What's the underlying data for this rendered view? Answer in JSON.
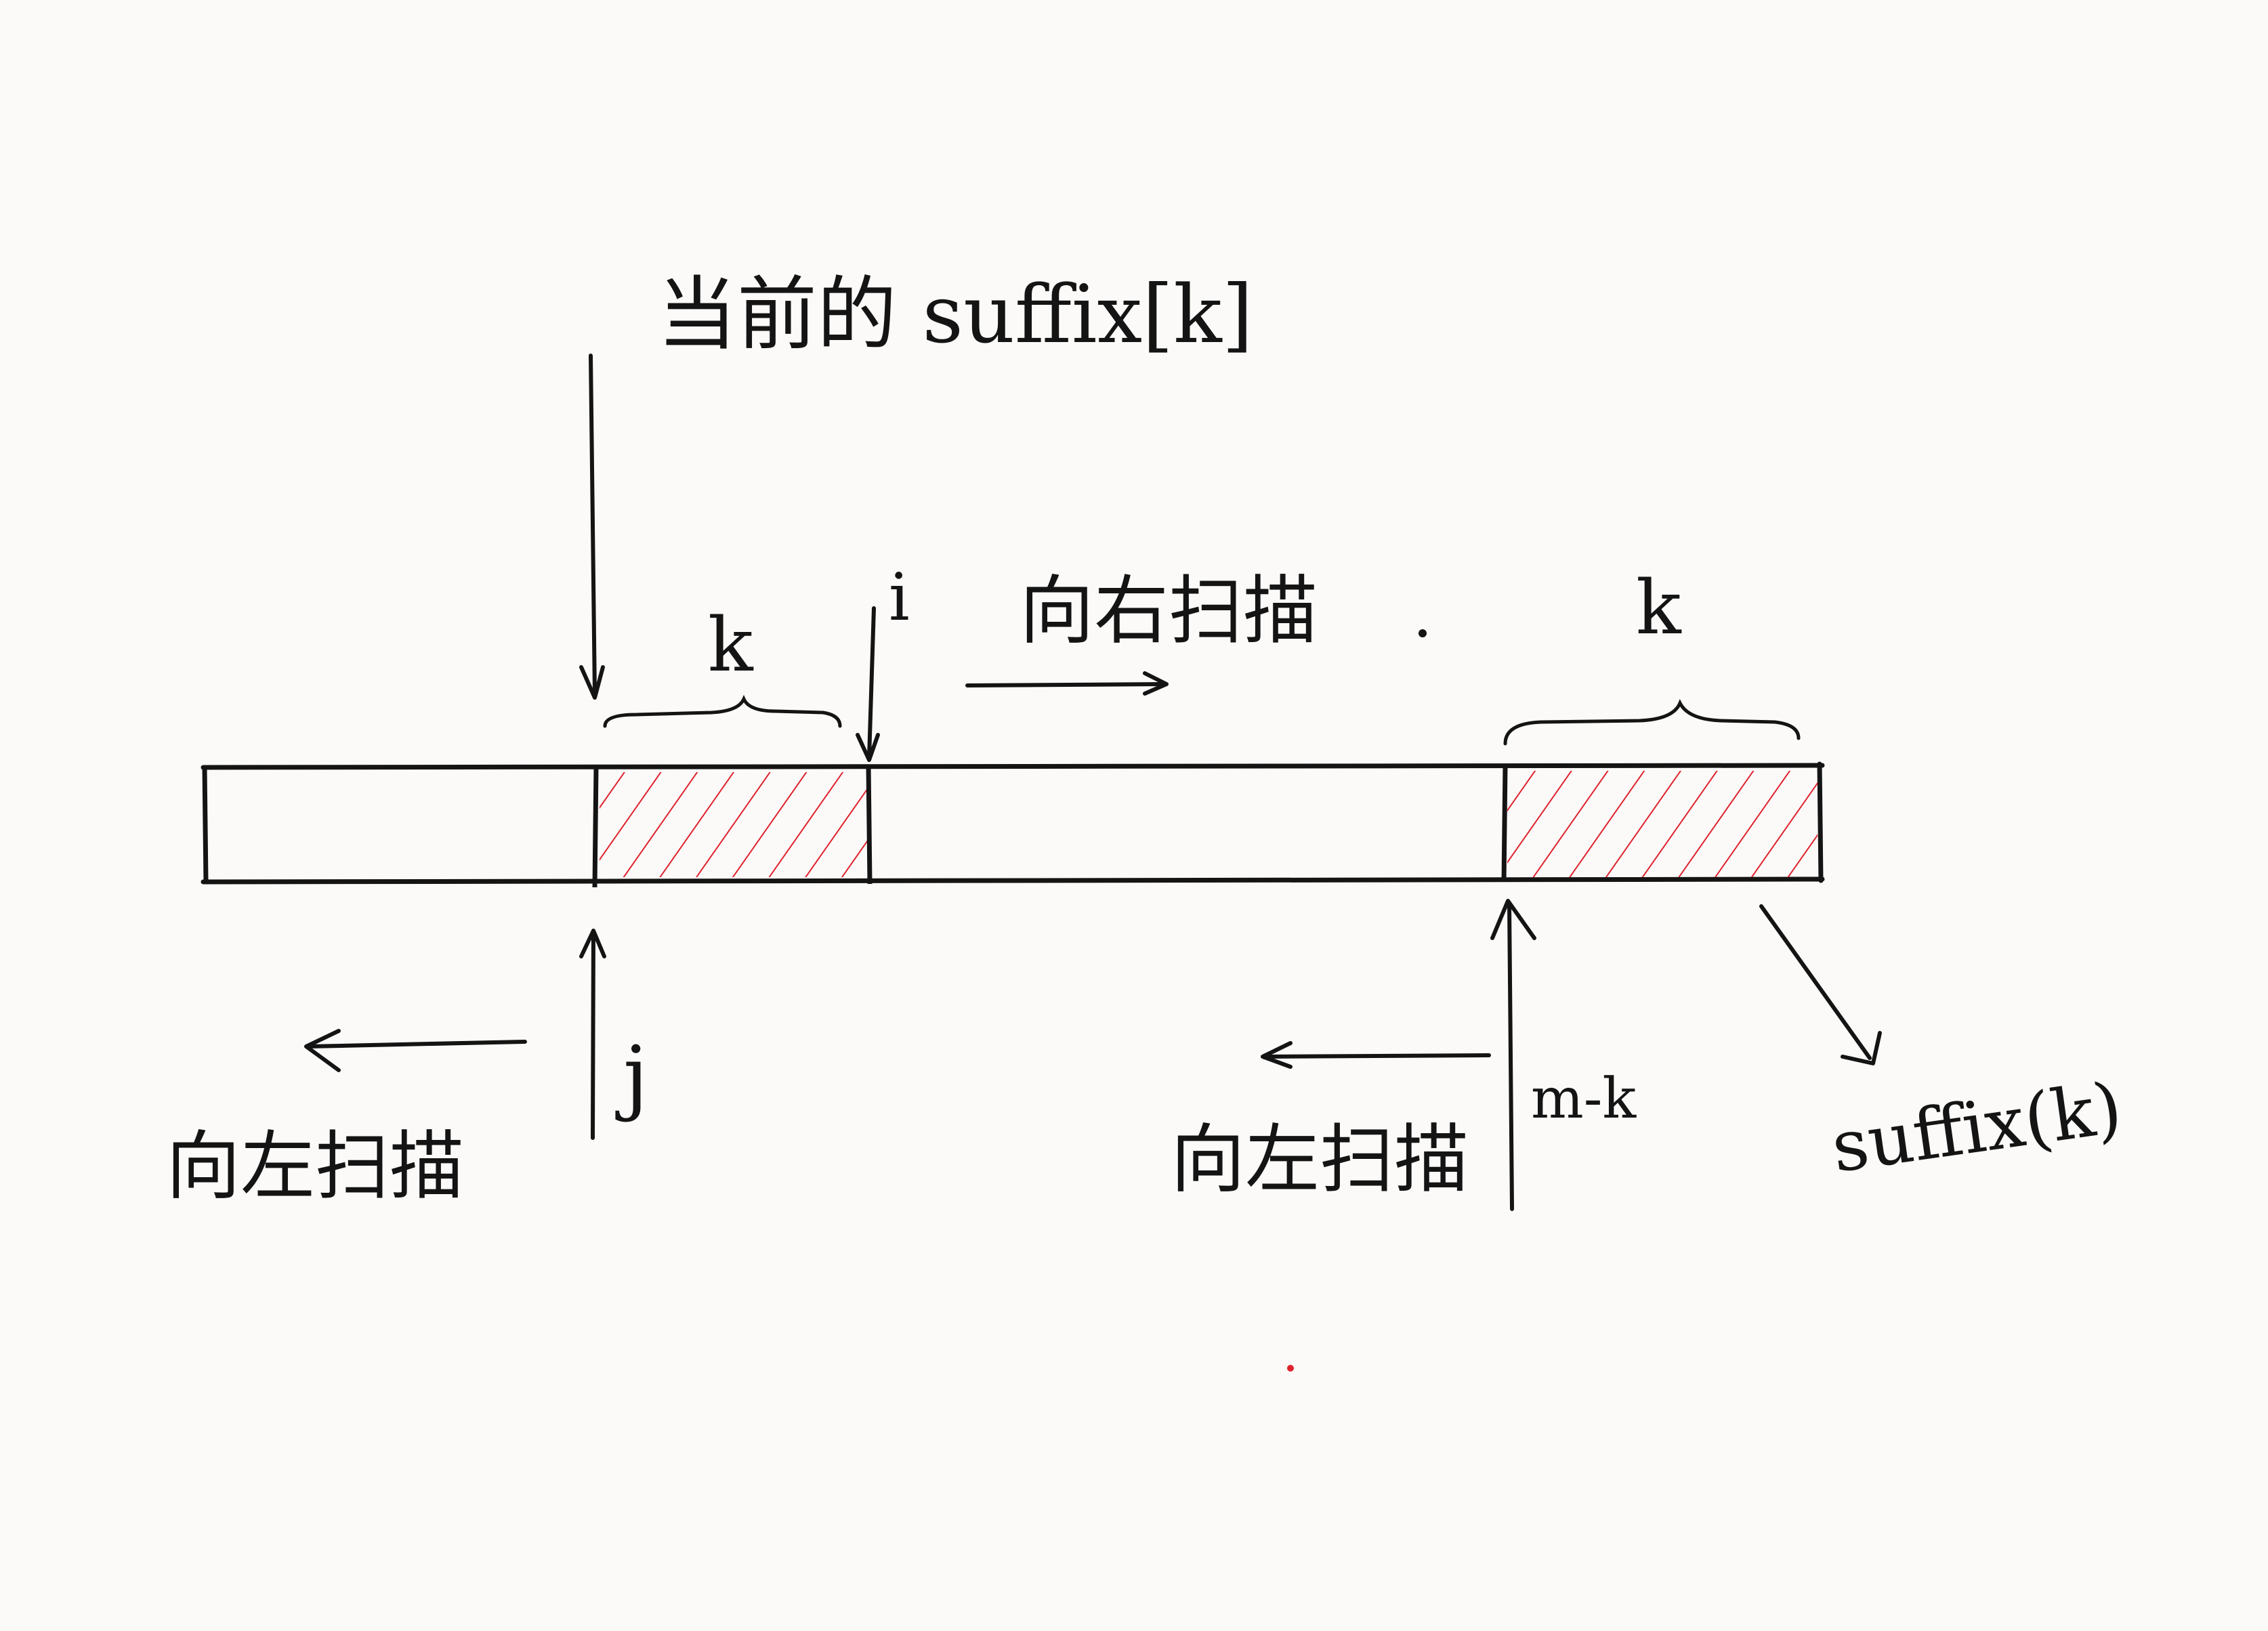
{
  "labels": {
    "top_caption": "当前的 suffix[k]",
    "i_label": "i",
    "k_left": "k",
    "k_right": "k",
    "scan_right": "向右扫描",
    "j_label": "j",
    "scan_left_1": "向左扫描",
    "mk_label": "m-k",
    "scan_left_2": "向左扫描",
    "suffix_label": "suffix(k)"
  },
  "colors": {
    "ink": "#141414",
    "hatch": "#e0222e",
    "paper": "#fbfaf8"
  }
}
